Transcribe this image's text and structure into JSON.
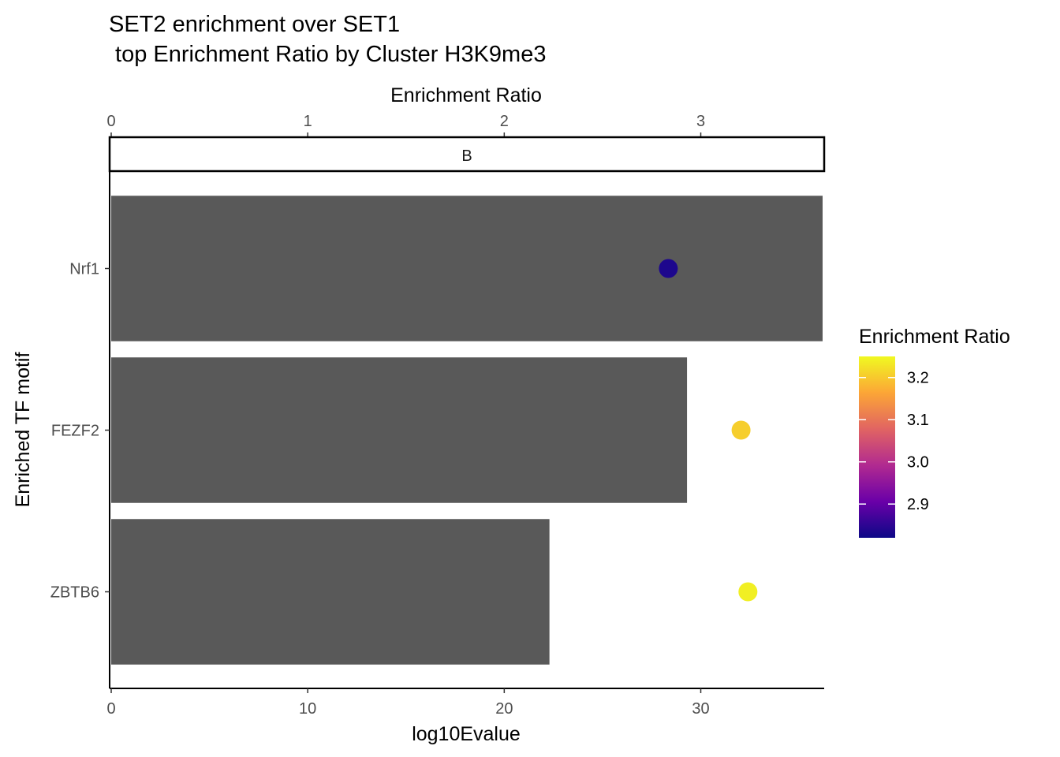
{
  "chart_data": {
    "type": "bar",
    "orientation": "horizontal",
    "title_lines": [
      "SET2 enrichment over SET1",
      " top Enrichment Ratio by Cluster H3K9me3"
    ],
    "facet_label": "B",
    "xlabel": "log10Evalue",
    "x2label": "Enrichment Ratio",
    "ylabel": "Enriched TF motif",
    "xlim": [
      0,
      36.2
    ],
    "x2lim": [
      0,
      3.62
    ],
    "x_ticks": [
      0,
      10,
      20,
      30
    ],
    "x2_ticks": [
      0,
      1,
      2,
      3
    ],
    "categories": [
      "Nrf1",
      "FEZF2",
      "ZBTB6"
    ],
    "bar_values": [
      36.2,
      29.3,
      22.3
    ],
    "point_values": [
      2.835,
      3.205,
      3.24
    ],
    "bar_color": "#595959",
    "legend": {
      "title": "Enrichment Ratio",
      "min": 2.82,
      "max": 3.25,
      "ticks": [
        2.9,
        3.0,
        3.1,
        3.2
      ],
      "tick_labels": [
        "2.9",
        "3.0",
        "3.1",
        "3.2"
      ],
      "colors": [
        "#0d0887",
        "#6a00a8",
        "#b12a90",
        "#e16462",
        "#fca636",
        "#f0f921"
      ]
    }
  }
}
